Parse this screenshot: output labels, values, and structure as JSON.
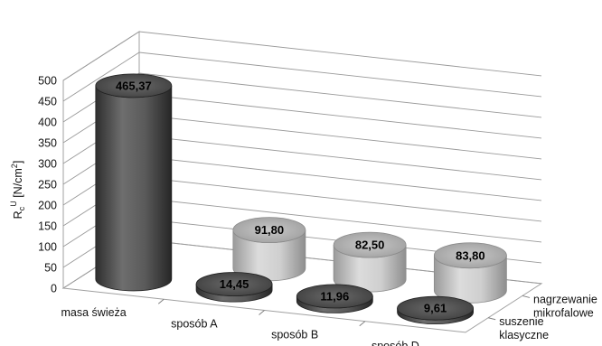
{
  "chart_data": {
    "type": "bar",
    "style": "3d-cylinder",
    "categories": [
      "masa świeża",
      "sposób A",
      "sposób B",
      "sposób D"
    ],
    "series": [
      {
        "name": "suszenie klasyczne",
        "name_lines": [
          "suszenie",
          "klasyczne"
        ],
        "color": "#555555",
        "values": [
          465.37,
          14.45,
          11.96,
          9.61
        ],
        "labels": [
          "465,37",
          "14,45",
          "11,96",
          "9,61"
        ]
      },
      {
        "name": "nagrzewanie mikrofalowe",
        "name_lines": [
          "nagrzewanie",
          "mikrofalowe"
        ],
        "color": "#b4b4b4",
        "values": [
          null,
          91.8,
          82.5,
          83.8
        ],
        "labels": [
          "",
          "91,80",
          "82,50",
          "83,80"
        ]
      }
    ],
    "yticks": [
      0,
      50,
      100,
      150,
      200,
      250,
      300,
      350,
      400,
      450,
      500
    ],
    "ylim": [
      0,
      500
    ],
    "ylabel": "Rc U [N/cm2]",
    "grid": true
  }
}
